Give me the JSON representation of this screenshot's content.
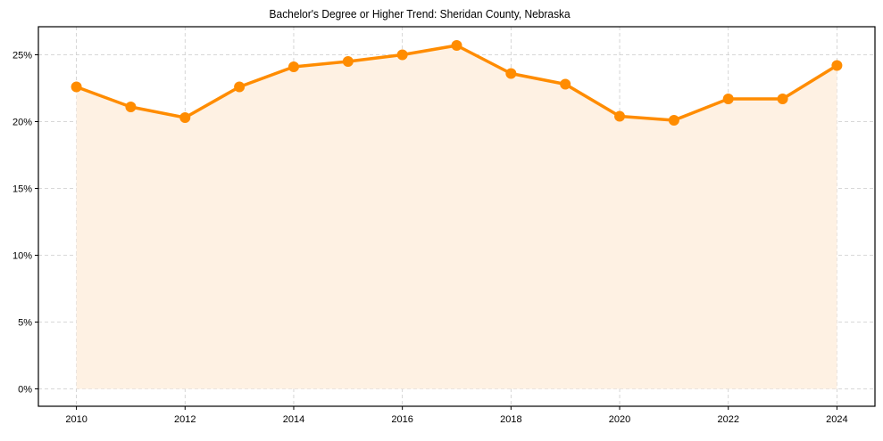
{
  "chart_data": {
    "type": "line",
    "title": "Bachelor's Degree or Higher Trend: Sheridan County, Nebraska",
    "xlabel": "",
    "ylabel": "",
    "x": [
      2010,
      2011,
      2012,
      2013,
      2014,
      2015,
      2016,
      2017,
      2018,
      2019,
      2020,
      2021,
      2022,
      2023,
      2024
    ],
    "series": [
      {
        "name": "Bachelor's Degree or Higher",
        "values": [
          22.6,
          21.1,
          20.3,
          22.6,
          24.1,
          24.5,
          25.0,
          25.7,
          23.6,
          22.8,
          20.4,
          20.1,
          21.7,
          21.7,
          24.2
        ],
        "color": "#ff8c00",
        "fill_color": "#fef1e3",
        "marker": "circle"
      }
    ],
    "xticks": [
      2010,
      2012,
      2014,
      2016,
      2018,
      2020,
      2022,
      2024
    ],
    "xtick_labels": [
      "2010",
      "2012",
      "2014",
      "2016",
      "2018",
      "2020",
      "2022",
      "2024"
    ],
    "yticks": [
      0,
      5,
      10,
      15,
      20,
      25
    ],
    "ytick_labels": [
      "0%",
      "5%",
      "10%",
      "15%",
      "20%",
      "25%"
    ],
    "xlim": [
      2009.3,
      2024.7
    ],
    "ylim": [
      -1.3,
      27.1
    ],
    "grid": true,
    "grid_style": "dashed",
    "legend": null
  }
}
